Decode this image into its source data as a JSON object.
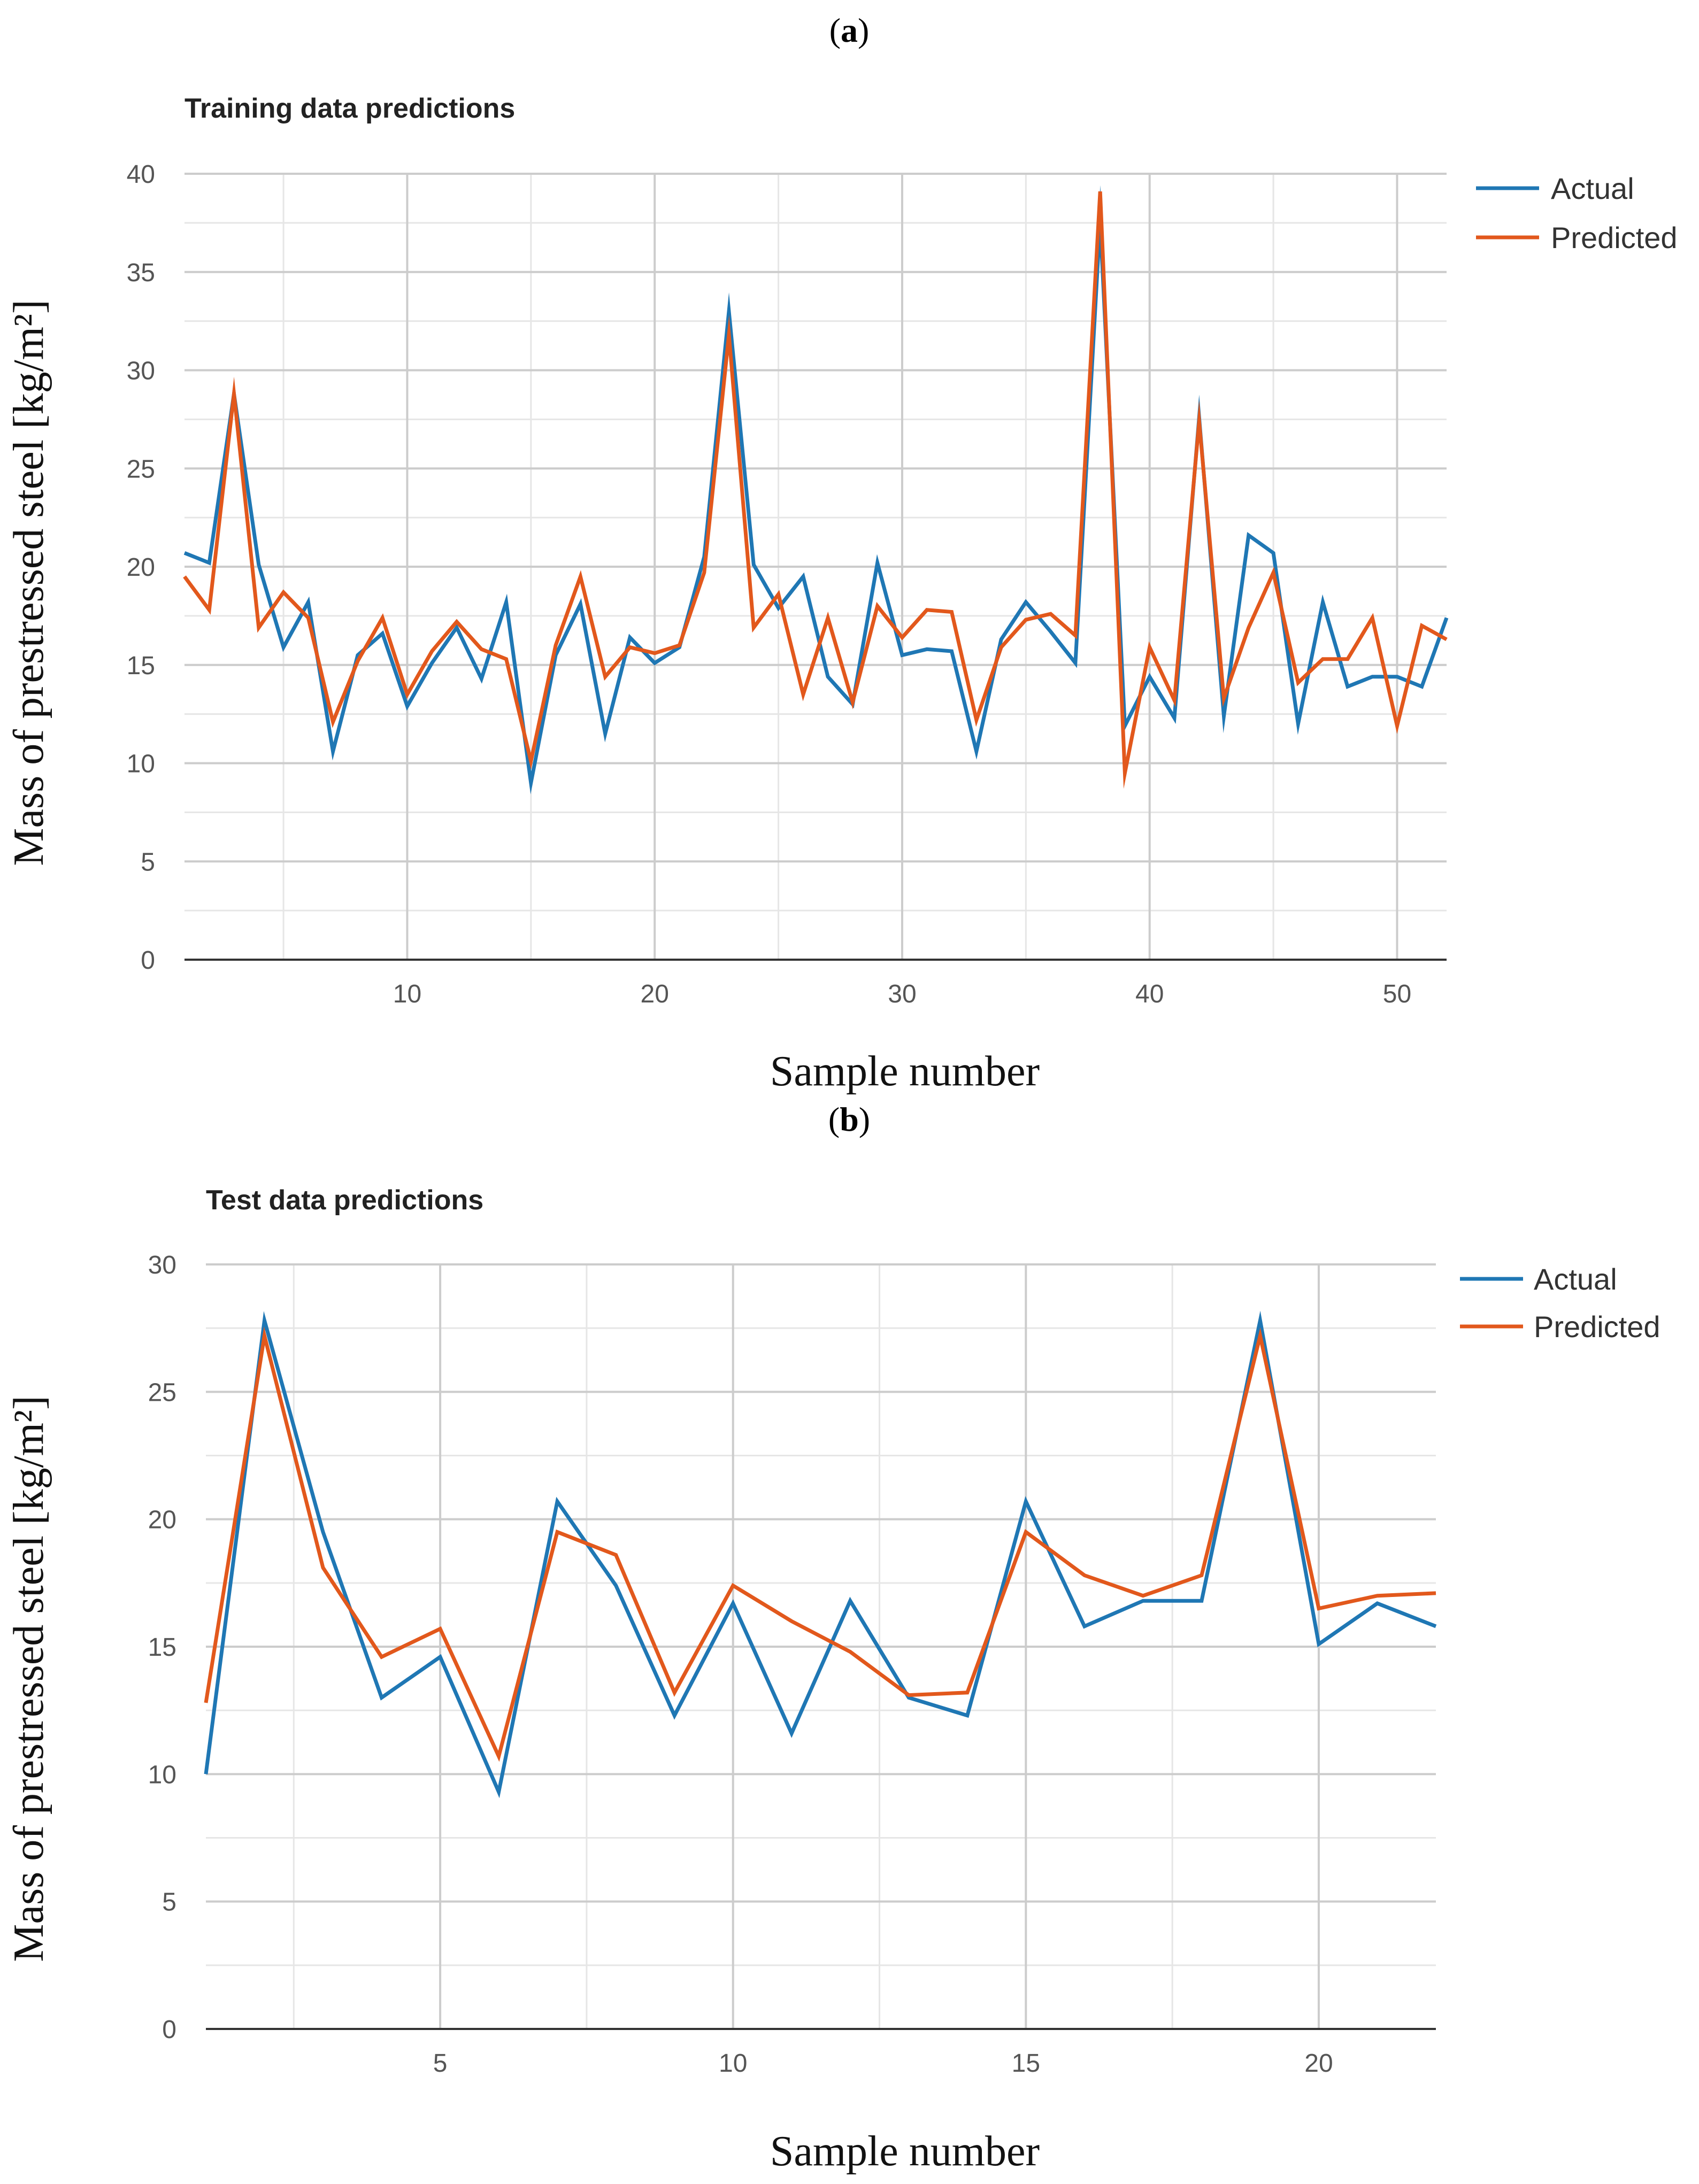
{
  "panels": [
    {
      "label_open": "(",
      "label_letter": "a",
      "label_close": ")"
    },
    {
      "label_open": "(",
      "label_letter": "b",
      "label_close": ")"
    }
  ],
  "chart_data": [
    {
      "type": "line",
      "title": "Training data predictions",
      "xlabel": "Sample number",
      "ylabel": "Mass of prestressed steel [kg/m²]",
      "xlim": [
        1,
        52
      ],
      "ylim": [
        0,
        40
      ],
      "x_ticks": [
        10,
        20,
        30,
        40,
        50
      ],
      "y_ticks": [
        0,
        5,
        10,
        15,
        20,
        25,
        30,
        35,
        40
      ],
      "grid": true,
      "legend_position": "top-right",
      "x": [
        1,
        2,
        3,
        4,
        5,
        6,
        7,
        8,
        9,
        10,
        11,
        12,
        13,
        14,
        15,
        16,
        17,
        18,
        19,
        20,
        21,
        22,
        23,
        24,
        25,
        26,
        27,
        28,
        29,
        30,
        31,
        32,
        33,
        34,
        35,
        36,
        37,
        38,
        39,
        40,
        41,
        42,
        43,
        44,
        45,
        46,
        47,
        48,
        49,
        50,
        51,
        52
      ],
      "series": [
        {
          "name": "Actual",
          "color": "#1f77b4",
          "values": [
            20.7,
            20.2,
            28.8,
            20.1,
            15.9,
            18.2,
            10.6,
            15.5,
            16.6,
            12.9,
            15.1,
            16.9,
            14.3,
            18.2,
            9.0,
            15.5,
            18.1,
            11.5,
            16.4,
            15.1,
            15.9,
            20.5,
            33.0,
            20.1,
            17.9,
            19.5,
            14.4,
            13.0,
            20.2,
            15.5,
            15.8,
            15.7,
            10.6,
            16.3,
            18.2,
            16.7,
            15.1,
            37.6,
            11.9,
            14.4,
            12.3,
            27.6,
            12.4,
            21.6,
            20.7,
            12.0,
            18.2,
            13.9,
            14.4,
            14.4,
            13.9,
            17.4
          ]
        },
        {
          "name": "Predicted",
          "color": "#e2581c",
          "values": [
            19.5,
            17.8,
            28.8,
            16.9,
            18.7,
            17.4,
            12.1,
            15.2,
            17.4,
            13.5,
            15.7,
            17.2,
            15.8,
            15.3,
            10.1,
            16.0,
            19.5,
            14.4,
            15.9,
            15.6,
            16.0,
            19.7,
            31.8,
            16.9,
            18.6,
            13.5,
            17.4,
            13.1,
            18.0,
            16.4,
            17.8,
            17.7,
            12.2,
            15.9,
            17.3,
            17.6,
            16.5,
            39.1,
            9.5,
            15.9,
            13.2,
            27.4,
            13.3,
            16.9,
            19.7,
            14.1,
            15.3,
            15.3,
            17.4,
            11.9,
            17.0,
            16.3
          ]
        }
      ]
    },
    {
      "type": "line",
      "title": "Test data predictions",
      "xlabel": "Sample number",
      "ylabel": "Mass of prestressed steel [kg/m²]",
      "xlim": [
        1,
        22
      ],
      "ylim": [
        0,
        30
      ],
      "x_ticks": [
        5,
        10,
        15,
        20
      ],
      "y_ticks": [
        0,
        5,
        10,
        15,
        20,
        25,
        30
      ],
      "grid": true,
      "legend_position": "top-right",
      "x": [
        1,
        2,
        3,
        4,
        5,
        6,
        7,
        8,
        9,
        10,
        11,
        12,
        13,
        14,
        15,
        16,
        17,
        18,
        19,
        20,
        21,
        22
      ],
      "series": [
        {
          "name": "Actual",
          "color": "#1f77b4",
          "values": [
            10.0,
            27.8,
            19.5,
            13.0,
            14.6,
            9.3,
            20.7,
            17.4,
            12.3,
            16.7,
            11.6,
            16.8,
            13.0,
            12.3,
            20.7,
            15.8,
            16.8,
            16.8,
            27.8,
            15.1,
            16.7,
            15.8
          ]
        },
        {
          "name": "Predicted",
          "color": "#e2581c",
          "values": [
            12.8,
            27.2,
            18.1,
            14.6,
            15.7,
            10.7,
            19.5,
            18.6,
            13.2,
            17.4,
            16.0,
            14.8,
            13.1,
            13.2,
            19.5,
            17.8,
            17.0,
            17.8,
            27.2,
            16.5,
            17.0,
            17.1
          ]
        }
      ]
    }
  ]
}
